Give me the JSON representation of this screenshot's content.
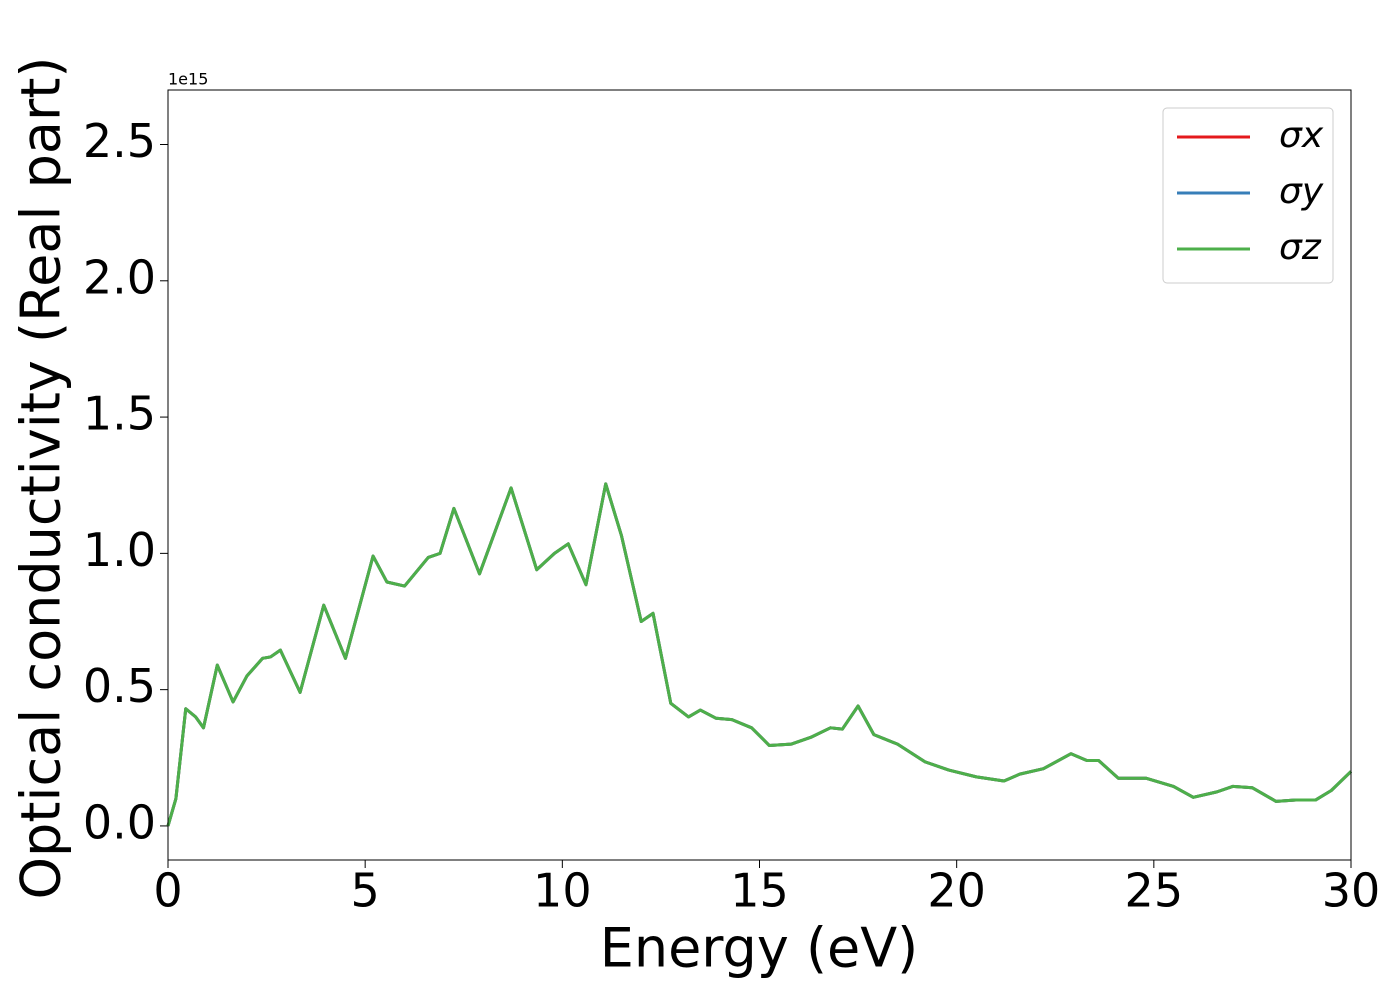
{
  "chart_data": {
    "type": "line",
    "x_label": "Energy (eV)",
    "y_label": "Optical conductivity (Real part)",
    "y_offset_text": "1e15",
    "xlim": [
      0,
      30
    ],
    "xticks": [
      0,
      5,
      10,
      15,
      20,
      25,
      30
    ],
    "ylim": [
      -0.125,
      2.7
    ],
    "yticks": [
      {
        "value": 0,
        "label": "0.0"
      },
      0.5,
      {
        "value": 1,
        "label": "1.0"
      },
      1.5,
      {
        "value": 2,
        "label": "2.0"
      },
      2.5
    ],
    "grid": false,
    "legend": "upper right",
    "x": [
      0,
      0.2,
      0.45,
      0.7,
      0.9,
      1.25,
      1.65,
      2.0,
      2.4,
      2.6,
      2.85,
      3.35,
      3.95,
      4.5,
      5.2,
      5.55,
      6.0,
      6.6,
      6.9,
      7.25,
      7.9,
      8.7,
      9.35,
      9.8,
      10.15,
      10.6,
      11.1,
      11.5,
      12.0,
      12.3,
      12.75,
      13.2,
      13.5,
      13.9,
      14.3,
      14.8,
      15.25,
      15.8,
      16.3,
      16.8,
      17.1,
      17.5,
      17.9,
      18.5,
      19.2,
      19.8,
      20.5,
      21.2,
      21.6,
      22.2,
      22.9,
      23.3,
      23.6,
      24.1,
      24.8,
      25.5,
      26.0,
      26.6,
      27.0,
      27.5,
      28.1,
      28.6,
      29.1,
      29.5,
      30
    ],
    "series": [
      {
        "name": "σx",
        "color": "#e41a1c",
        "values": [
          0,
          0.1,
          0.43,
          0.4,
          0.36,
          0.59,
          0.455,
          0.55,
          0.615,
          0.62,
          0.645,
          0.49,
          0.81,
          0.615,
          0.99,
          0.895,
          0.88,
          0.985,
          1.0,
          1.165,
          0.925,
          1.24,
          0.94,
          1.0,
          1.035,
          0.885,
          1.255,
          1.065,
          0.75,
          0.78,
          0.45,
          0.4,
          0.425,
          0.395,
          0.39,
          0.36,
          0.295,
          0.3,
          0.325,
          0.36,
          0.355,
          0.44,
          0.335,
          0.3,
          0.235,
          0.205,
          0.18,
          0.165,
          0.19,
          0.21,
          0.265,
          0.24,
          0.24,
          0.175,
          0.175,
          0.145,
          0.105,
          0.125,
          0.145,
          0.14,
          0.09,
          0.095,
          0.095,
          0.13,
          0.2
        ]
      },
      {
        "name": "σy",
        "color": "#377eb8",
        "values": [
          0,
          0.1,
          0.43,
          0.4,
          0.36,
          0.59,
          0.455,
          0.55,
          0.615,
          0.62,
          0.645,
          0.49,
          0.81,
          0.615,
          0.99,
          0.895,
          0.88,
          0.985,
          1.0,
          1.165,
          0.925,
          1.24,
          0.94,
          1.0,
          1.035,
          0.885,
          1.255,
          1.065,
          0.75,
          0.78,
          0.45,
          0.4,
          0.425,
          0.395,
          0.39,
          0.36,
          0.295,
          0.3,
          0.325,
          0.36,
          0.355,
          0.44,
          0.335,
          0.3,
          0.235,
          0.205,
          0.18,
          0.165,
          0.19,
          0.21,
          0.265,
          0.24,
          0.24,
          0.175,
          0.175,
          0.145,
          0.105,
          0.125,
          0.145,
          0.14,
          0.09,
          0.095,
          0.095,
          0.13,
          0.2
        ]
      },
      {
        "name": "σz",
        "color": "#4daf4a",
        "values": [
          0,
          0.1,
          0.43,
          0.4,
          0.36,
          0.59,
          0.455,
          0.55,
          0.615,
          0.62,
          0.645,
          0.49,
          0.81,
          0.615,
          0.99,
          0.895,
          0.88,
          0.985,
          1.0,
          1.165,
          0.925,
          1.24,
          0.94,
          1.0,
          1.035,
          0.885,
          1.255,
          1.065,
          0.75,
          0.78,
          0.45,
          0.4,
          0.425,
          0.395,
          0.39,
          0.36,
          0.295,
          0.3,
          0.325,
          0.36,
          0.355,
          0.44,
          0.335,
          0.3,
          0.235,
          0.205,
          0.18,
          0.165,
          0.19,
          0.21,
          0.265,
          0.24,
          0.24,
          0.175,
          0.175,
          0.145,
          0.105,
          0.125,
          0.145,
          0.14,
          0.09,
          0.095,
          0.095,
          0.13,
          0.2
        ]
      }
    ]
  }
}
